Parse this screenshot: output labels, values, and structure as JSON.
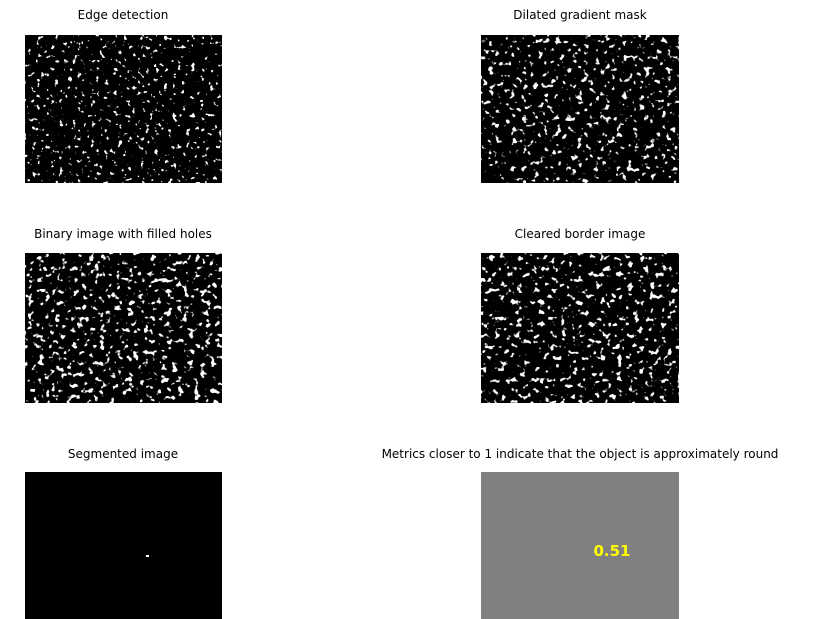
{
  "panels": [
    {
      "title": "Edge detection"
    },
    {
      "title": "Dilated gradient mask"
    },
    {
      "title": "Binary image with filled holes"
    },
    {
      "title": "Cleared border image"
    },
    {
      "title": "Segmented image"
    },
    {
      "title": "Metrics closer to 1 indicate that the object is approximately round",
      "label": "0.51"
    }
  ]
}
